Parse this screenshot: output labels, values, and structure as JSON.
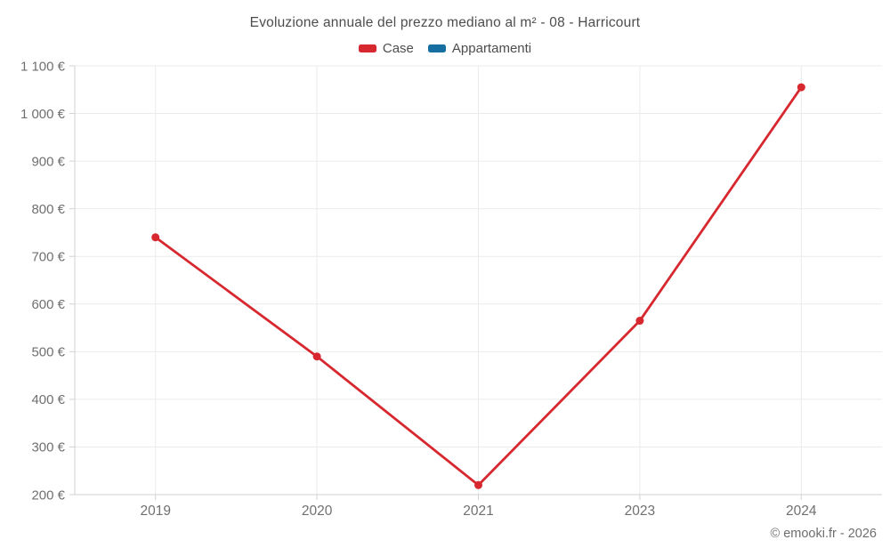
{
  "chart_data": {
    "type": "line",
    "title": "Evoluzione annuale del prezzo mediano al m² - 08 - Harricourt",
    "categories": [
      "2019",
      "2020",
      "2021",
      "2023",
      "2024"
    ],
    "series": [
      {
        "name": "Case",
        "color": "#d7282f",
        "values": [
          740,
          490,
          220,
          565,
          1055
        ]
      },
      {
        "name": "Appartamenti",
        "color": "#176fa1",
        "values": [
          null,
          null,
          null,
          null,
          null
        ]
      }
    ],
    "ylim": [
      200,
      1100
    ],
    "ytick_step": 100,
    "ytick_suffix": " €",
    "ytick_labels": [
      "200 €",
      "300 €",
      "400 €",
      "500 €",
      "600 €",
      "700 €",
      "800 €",
      "900 €",
      "1 000 €",
      "1 100 €"
    ],
    "grid": true,
    "legend_position": "top",
    "xlabel": "",
    "ylabel": ""
  },
  "style": {
    "grid_color": "#ebebeb",
    "axis_color": "#d2d2d2",
    "tick_label_color": "#707070",
    "title_color": "#4d4d4d",
    "point_radius": 4.5,
    "line_width": 2.8
  },
  "footer": {
    "copyright": "© emooki.fr - 2026"
  }
}
